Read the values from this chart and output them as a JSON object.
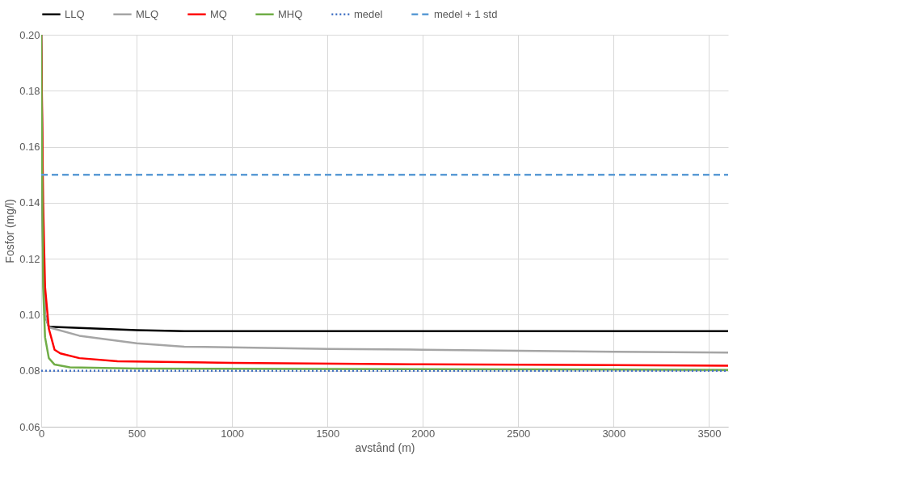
{
  "chart_data": {
    "type": "line",
    "xlabel": "avstånd (m)",
    "ylabel": "Fosfor (mg/l)",
    "xlim": [
      0,
      3600
    ],
    "xticks": [
      0,
      500,
      1000,
      1500,
      2000,
      2500,
      3000,
      3500
    ],
    "ylim": [
      0.06,
      0.2
    ],
    "yticks": [
      0.06,
      0.08,
      {
        "value": 0.1,
        "label": "0.10"
      },
      0.12,
      0.14,
      0.16,
      0.18,
      {
        "value": 0.2,
        "label": "0.20"
      }
    ],
    "grid": true,
    "legend": "top",
    "marker": "none",
    "line_style": "solid",
    "series": [
      {
        "name": "LLQ",
        "color": "#000000",
        "x": [
          0,
          10,
          20,
          40,
          200,
          500,
          750,
          3600
        ],
        "values": [
          0.2,
          0.12,
          0.1,
          0.0957,
          0.0953,
          0.0945,
          0.0941,
          0.0941
        ]
      },
      {
        "name": "MLQ",
        "color": "#a5a5a5",
        "x": [
          0,
          10,
          20,
          40,
          200,
          500,
          750,
          1500,
          2000,
          2500,
          3000,
          3600
        ],
        "values": [
          0.2,
          0.13,
          0.1,
          0.0955,
          0.0925,
          0.0898,
          0.0886,
          0.0878,
          0.0875,
          0.0871,
          0.0868,
          0.0865
        ]
      },
      {
        "name": "MQ",
        "color": "#ff0000",
        "x": [
          0,
          10,
          20,
          40,
          70,
          100,
          200,
          400,
          1000,
          2000,
          3600
        ],
        "values": [
          0.2,
          0.14,
          0.11,
          0.095,
          0.0875,
          0.0862,
          0.0845,
          0.0834,
          0.0828,
          0.0823,
          0.0818
        ]
      },
      {
        "name": "MHQ",
        "color": "#70ad47",
        "x": [
          0,
          5,
          10,
          20,
          40,
          70,
          150,
          500,
          3600
        ],
        "values": [
          0.2,
          0.15,
          0.11,
          0.092,
          0.0845,
          0.0822,
          0.0812,
          0.0808,
          0.0803
        ]
      }
    ],
    "ref_lines": [
      {
        "axis": "y",
        "value": 0.08,
        "label": "medel",
        "color": "#4472c4",
        "line_style": "dotted"
      },
      {
        "axis": "y",
        "value": 0.15,
        "label": "medel + 1 std",
        "color": "#5b9bd5",
        "line_style": "dashed"
      }
    ]
  }
}
